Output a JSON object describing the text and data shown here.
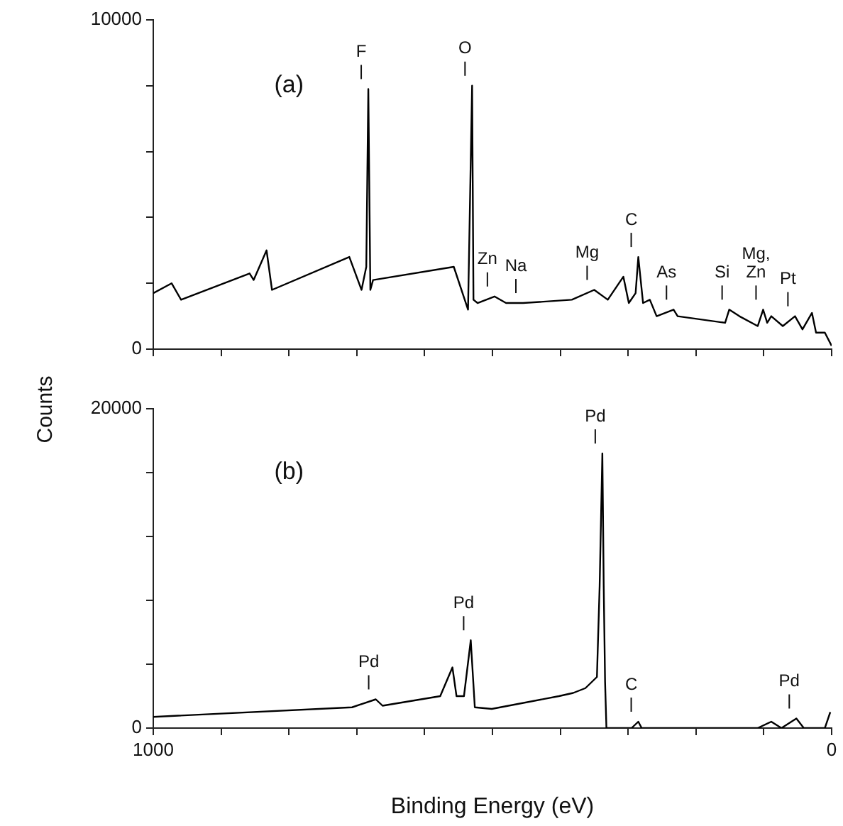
{
  "chart_data": [
    {
      "type": "line",
      "ylabel": "Counts",
      "color": "#000000",
      "grid": false,
      "tick_labels": "y",
      "xlim": [
        1000,
        0
      ],
      "xticks": [
        {
          "value": 1000,
          "label": null
        },
        {
          "value": 900,
          "label": null
        },
        {
          "value": 800,
          "label": null
        },
        {
          "value": 700,
          "label": null
        },
        {
          "value": 600,
          "label": null
        },
        {
          "value": 500,
          "label": null
        },
        {
          "value": 400,
          "label": null
        },
        {
          "value": 300,
          "label": null
        },
        {
          "value": 200,
          "label": null
        },
        {
          "value": 100,
          "label": null
        },
        {
          "value": 0,
          "label": null
        }
      ],
      "ylim": [
        0,
        10000
      ],
      "yticks": [
        0,
        {
          "value": 2000,
          "label": null
        },
        {
          "value": 4000,
          "label": null
        },
        {
          "value": 6000,
          "label": null
        },
        {
          "value": 8000,
          "label": null
        },
        10000
      ],
      "x": [
        1000,
        973,
        959,
        858,
        852,
        833,
        825,
        711,
        693,
        686,
        683,
        680,
        676,
        557,
        536,
        530,
        528,
        522,
        497,
        480,
        455,
        383,
        350,
        330,
        307,
        299,
        289,
        285,
        278,
        268,
        258,
        233,
        227,
        157,
        151,
        136,
        109,
        101,
        95,
        89,
        72,
        54,
        43,
        29,
        23,
        10,
        0
      ],
      "values": [
        1700,
        2000,
        1500,
        2300,
        2100,
        3000,
        1800,
        2800,
        1800,
        2500,
        7900,
        1800,
        2100,
        2500,
        1200,
        8000,
        1500,
        1400,
        1600,
        1400,
        1400,
        1500,
        1800,
        1500,
        2200,
        1400,
        1700,
        2800,
        1400,
        1500,
        1000,
        1200,
        1000,
        800,
        1200,
        1000,
        700,
        1200,
        800,
        1000,
        700,
        1000,
        600,
        1100,
        500,
        500,
        100
      ],
      "annotations": [
        "(a)",
        {
          "text": "F",
          "x": 683,
          "y": 7900
        },
        {
          "text": "O",
          "x": 530,
          "y": 8000
        },
        {
          "text": "Zn",
          "x": 497,
          "y": 1600
        },
        {
          "text": "Na",
          "x": 455,
          "y": 1400
        },
        {
          "text": "Mg",
          "x": 350,
          "y": 1800
        },
        {
          "text": "C",
          "x": 285,
          "y": 2800
        },
        {
          "text": "As",
          "x": 233,
          "y": 1200
        },
        {
          "text": "Si",
          "x": 151,
          "y": 1200
        },
        {
          "text": "Mg,\nZn",
          "x": 101,
          "y": 1200
        },
        {
          "text": "Pt",
          "x": 54,
          "y": 1000
        }
      ]
    },
    {
      "type": "line",
      "xlabel": "Binding Energy (eV)",
      "color": "#000000",
      "grid": false,
      "xlim": [
        1000,
        0
      ],
      "xticks": [
        1000,
        {
          "value": 900,
          "label": null
        },
        {
          "value": 800,
          "label": null
        },
        {
          "value": 700,
          "label": null
        },
        {
          "value": 600,
          "label": null
        },
        {
          "value": 500,
          "label": null
        },
        {
          "value": 400,
          "label": null
        },
        {
          "value": 300,
          "label": null
        },
        {
          "value": 200,
          "label": null
        },
        {
          "value": 100,
          "label": null
        },
        0
      ],
      "ylim": [
        0,
        20000
      ],
      "yticks": [
        0,
        {
          "value": 4000,
          "label": null
        },
        {
          "value": 8000,
          "label": null
        },
        {
          "value": 12000,
          "label": null
        },
        {
          "value": 16000,
          "label": null
        },
        20000
      ],
      "x": [
        1000,
        707,
        672,
        662,
        577,
        559,
        553,
        542,
        532,
        526,
        501,
        402,
        381,
        363,
        346,
        342,
        338,
        336,
        334,
        332,
        295,
        285,
        280,
        109,
        89,
        74,
        52,
        41,
        10,
        2
      ],
      "values": [
        700,
        1300,
        1800,
        1400,
        2000,
        3800,
        2000,
        2000,
        5500,
        1300,
        1200,
        2000,
        2200,
        2500,
        3200,
        8900,
        17200,
        8900,
        2900,
        0,
        0,
        400,
        0,
        0,
        400,
        0,
        600,
        0,
        0,
        1000
      ],
      "annotations": [
        "(b)",
        {
          "text": "Pd",
          "x": 338,
          "y": 17200
        },
        {
          "text": "Pd",
          "x": 672,
          "y": 1800
        },
        {
          "text": "Pd",
          "x": 532,
          "y": 5500
        },
        {
          "text": "C",
          "x": 285,
          "y": 400
        },
        {
          "text": "Pd",
          "x": 52,
          "y": 600
        }
      ]
    }
  ]
}
